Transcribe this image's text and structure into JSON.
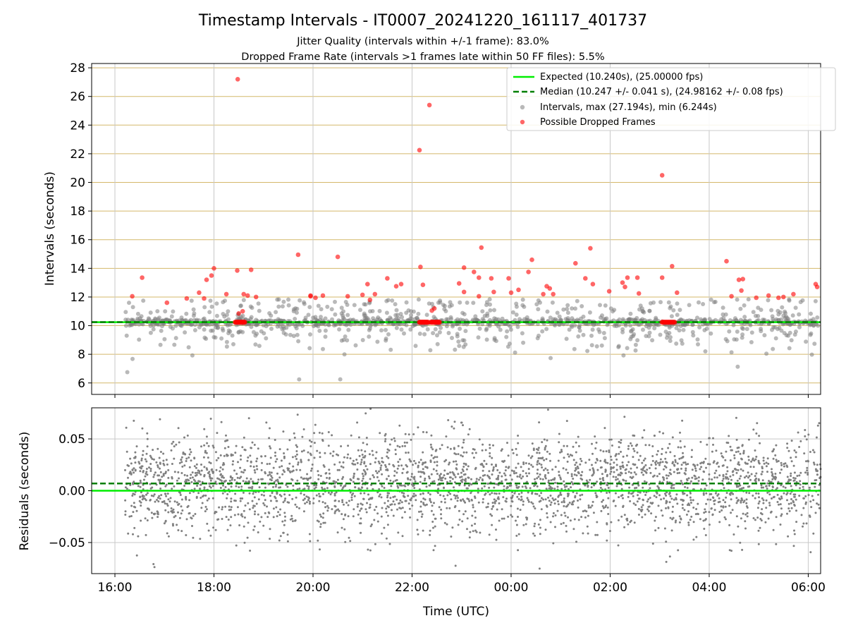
{
  "figure": {
    "title": "Timestamp Intervals - IT0007_20241220_161117_401737",
    "subtitle_1": "Jitter Quality (intervals within +/-1 frame): 83.0%",
    "subtitle_2": "Dropped Frame Rate (intervals >1 frames late within 50 FF files): 5.5%"
  },
  "colors": {
    "expected": "#00ee00",
    "median": "#007f00",
    "intervals": "#808080",
    "dropped": "#ff0000",
    "hgrid": "#d4b86a",
    "vgrid": "#c8c8c8"
  },
  "chart_data": [
    {
      "type": "scatter",
      "panel": "top",
      "ylabel": "Intervals (seconds)",
      "ylim": [
        5.2,
        28.3
      ],
      "yticks": [
        6,
        8,
        10,
        12,
        14,
        16,
        18,
        20,
        22,
        24,
        26,
        28
      ],
      "xlim_hours": [
        15.53,
        30.25
      ],
      "grid": true,
      "legend_position": "top-right",
      "legend": [
        "Expected (10.240s), (25.00000 fps)",
        "Median (10.247 +/- 0.041 s), (24.98162 +/- 0.08 fps)",
        "Intervals, max (27.194s), min (6.244s)",
        "Possible Dropped Frames"
      ],
      "expected_interval": 10.24,
      "median_interval": 10.247,
      "interval_max": 27.194,
      "interval_min": 6.244,
      "time_range_hours": [
        16.2,
        30.2
      ],
      "dropped_frames": [
        [
          16.35,
          12.05
        ],
        [
          16.55,
          13.35
        ],
        [
          17.05,
          11.6
        ],
        [
          17.45,
          11.9
        ],
        [
          17.7,
          12.3
        ],
        [
          17.85,
          13.2
        ],
        [
          17.95,
          13.5
        ],
        [
          18.0,
          14.0
        ],
        [
          17.8,
          11.9
        ],
        [
          18.25,
          12.2
        ],
        [
          18.48,
          27.2
        ],
        [
          18.47,
          13.85
        ],
        [
          18.5,
          10.85
        ],
        [
          18.58,
          11.0
        ],
        [
          18.6,
          12.2
        ],
        [
          18.68,
          12.1
        ],
        [
          18.75,
          13.9
        ],
        [
          18.85,
          12.0
        ],
        [
          19.7,
          14.95
        ],
        [
          19.95,
          12.05
        ],
        [
          19.95,
          12.1
        ],
        [
          20.05,
          11.95
        ],
        [
          20.2,
          12.1
        ],
        [
          20.5,
          14.8
        ],
        [
          20.7,
          12.05
        ],
        [
          21.0,
          12.15
        ],
        [
          21.1,
          12.9
        ],
        [
          21.15,
          11.8
        ],
        [
          21.25,
          12.2
        ],
        [
          21.5,
          13.3
        ],
        [
          21.68,
          12.75
        ],
        [
          21.78,
          12.9
        ],
        [
          22.15,
          22.25
        ],
        [
          22.17,
          14.1
        ],
        [
          22.22,
          12.85
        ],
        [
          22.35,
          25.4
        ],
        [
          22.4,
          11.05
        ],
        [
          22.45,
          11.2
        ],
        [
          22.95,
          12.95
        ],
        [
          23.05,
          12.35
        ],
        [
          23.05,
          14.05
        ],
        [
          23.25,
          13.75
        ],
        [
          23.35,
          13.35
        ],
        [
          23.35,
          12.05
        ],
        [
          23.4,
          15.45
        ],
        [
          23.6,
          13.3
        ],
        [
          23.65,
          12.35
        ],
        [
          23.95,
          13.3
        ],
        [
          24.0,
          12.3
        ],
        [
          24.15,
          12.5
        ],
        [
          24.35,
          13.75
        ],
        [
          24.42,
          14.6
        ],
        [
          24.65,
          12.2
        ],
        [
          24.72,
          12.75
        ],
        [
          24.78,
          12.6
        ],
        [
          24.85,
          12.2
        ],
        [
          25.3,
          14.35
        ],
        [
          25.5,
          13.3
        ],
        [
          25.6,
          15.4
        ],
        [
          25.65,
          12.9
        ],
        [
          25.98,
          12.4
        ],
        [
          26.25,
          13.0
        ],
        [
          26.3,
          12.7
        ],
        [
          26.35,
          13.35
        ],
        [
          26.55,
          13.35
        ],
        [
          26.58,
          12.25
        ],
        [
          27.05,
          20.5
        ],
        [
          27.05,
          13.35
        ],
        [
          27.25,
          14.15
        ],
        [
          27.35,
          12.3
        ],
        [
          28.35,
          14.5
        ],
        [
          28.45,
          12.05
        ],
        [
          28.6,
          13.2
        ],
        [
          28.65,
          12.45
        ],
        [
          28.68,
          13.25
        ],
        [
          28.95,
          11.95
        ],
        [
          29.2,
          12.1
        ],
        [
          29.4,
          11.95
        ],
        [
          29.5,
          12.0
        ],
        [
          29.7,
          12.2
        ],
        [
          30.15,
          12.9
        ],
        [
          30.18,
          12.7
        ]
      ],
      "dropped_clusters": [
        {
          "x": [
            18.43,
            18.62
          ],
          "y": 10.24
        },
        {
          "x": [
            22.15,
            22.32
          ],
          "y": 10.24
        },
        {
          "x": [
            22.38,
            22.55
          ],
          "y": 10.24
        },
        {
          "x": [
            27.05,
            27.3
          ],
          "y": 10.24
        }
      ]
    },
    {
      "type": "scatter",
      "panel": "bottom",
      "ylabel": "Residuals (seconds)",
      "xlabel": "Time (UTC)",
      "ylim": [
        -0.08,
        0.08
      ],
      "yticks": [
        -0.05,
        0.0,
        0.05
      ],
      "ytick_labels": [
        "−0.05",
        "0.00",
        "0.05"
      ],
      "xlim_hours": [
        15.53,
        30.25
      ],
      "xticks_hours": [
        16,
        18,
        20,
        22,
        24,
        26,
        28,
        30
      ],
      "xtick_labels": [
        "16:00",
        "18:00",
        "20:00",
        "22:00",
        "00:00",
        "02:00",
        "04:00",
        "06:00"
      ],
      "grid": true,
      "expected_residual": 0.0,
      "median_residual": 0.007,
      "residual_spread_sd": 0.024,
      "time_range_hours": [
        16.2,
        30.25
      ]
    }
  ]
}
